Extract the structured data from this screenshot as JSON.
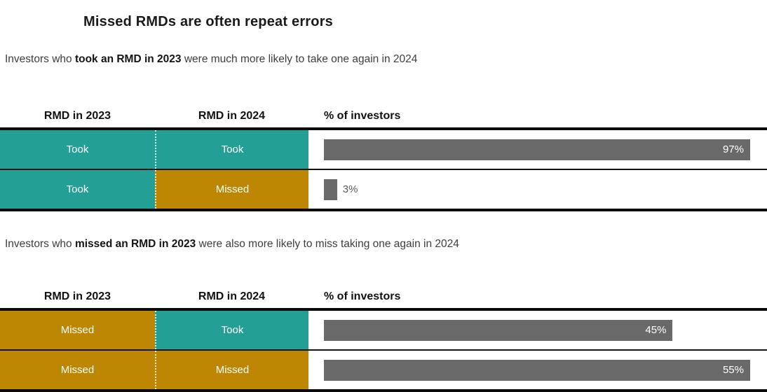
{
  "title": "Missed RMDs are often repeat errors",
  "subtitle_1": {
    "prefix": "Investors who ",
    "bold": "took an RMD in 2023",
    "suffix": " were much more likely to take one again in 2024"
  },
  "subtitle_2": {
    "prefix": "Investors who ",
    "bold": "missed an RMD in 2023",
    "suffix": " were also more likely to miss taking one again in 2024"
  },
  "colors": {
    "teal": "#239f96",
    "gold": "#bd8704",
    "bar_gray": "#696969",
    "bar_label_inside": "#ffffff",
    "bar_label_outside": "#595959",
    "border_black": "#0a0a0a"
  },
  "tables": [
    {
      "headers": [
        "RMD in 2023",
        "RMD in 2024",
        "% of investors"
      ],
      "rows": [
        {
          "rmd_2023": {
            "label": "Took",
            "color": "teal"
          },
          "rmd_2024": {
            "label": "Took",
            "color": "teal"
          },
          "value": 97,
          "value_label": "97%",
          "label_position": "inside"
        },
        {
          "rmd_2023": {
            "label": "Took",
            "color": "teal"
          },
          "rmd_2024": {
            "label": "Missed",
            "color": "gold"
          },
          "value": 3,
          "value_label": "3%",
          "label_position": "outside"
        }
      ]
    },
    {
      "headers": [
        "RMD in 2023",
        "RMD in 2024",
        "% of investors"
      ],
      "rows": [
        {
          "rmd_2023": {
            "label": "Missed",
            "color": "gold"
          },
          "rmd_2024": {
            "label": "Took",
            "color": "teal"
          },
          "value": 45,
          "value_label": "45%",
          "label_position": "inside"
        },
        {
          "rmd_2023": {
            "label": "Missed",
            "color": "gold"
          },
          "rmd_2024": {
            "label": "Missed",
            "color": "gold"
          },
          "value": 55,
          "value_label": "55%",
          "label_position": "inside"
        }
      ]
    }
  ],
  "chart_data": [
    {
      "type": "bar",
      "title": "Investors who took an RMD in 2023 were much more likely to take one again in 2024",
      "categories": [
        "Took / Took",
        "Took / Missed"
      ],
      "values": [
        97,
        3
      ],
      "value_labels": [
        "97%",
        "3%"
      ],
      "xlabel": "% of investors",
      "bar_scale_max": 97,
      "orientation": "horizontal",
      "grid": false,
      "legend": false
    },
    {
      "type": "bar",
      "title": "Investors who missed an RMD in 2023 were also more likely to miss taking one again in 2024",
      "categories": [
        "Missed / Took",
        "Missed / Missed"
      ],
      "values": [
        45,
        55
      ],
      "value_labels": [
        "45%",
        "55%"
      ],
      "xlabel": "% of investors",
      "bar_scale_max": 55,
      "orientation": "horizontal",
      "grid": false,
      "legend": false
    }
  ]
}
